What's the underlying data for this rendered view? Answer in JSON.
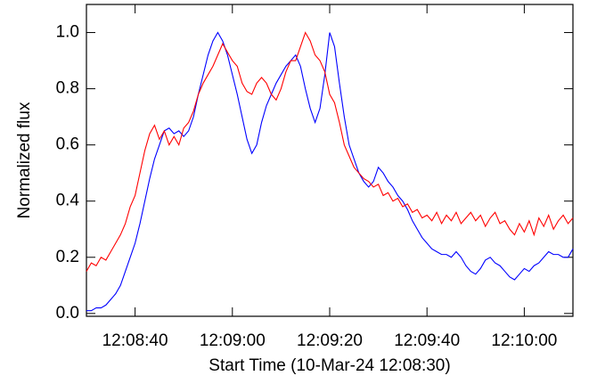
{
  "chart_data": {
    "type": "line",
    "xlabel": "Start Time (10-Mar-24 12:08:30)",
    "ylabel": "Normalized flux",
    "x": [
      0,
      1,
      2,
      3,
      4,
      5,
      6,
      7,
      8,
      9,
      10,
      11,
      12,
      13,
      14,
      15,
      16,
      17,
      18,
      19,
      20,
      21,
      22,
      23,
      24,
      25,
      26,
      27,
      28,
      29,
      30,
      31,
      32,
      33,
      34,
      35,
      36,
      37,
      38,
      39,
      40,
      41,
      42,
      43,
      44,
      45,
      46,
      47,
      48,
      49,
      50,
      51,
      52,
      53,
      54,
      55,
      56,
      57,
      58,
      59,
      60,
      61,
      62,
      63,
      64,
      65,
      66,
      67,
      68,
      69,
      70,
      71,
      72,
      73,
      74,
      75,
      76,
      77,
      78,
      79,
      80,
      81,
      82,
      83,
      84,
      85,
      86,
      87,
      88,
      89,
      90,
      91,
      92,
      93,
      94,
      95,
      96,
      97,
      98,
      99,
      100
    ],
    "series": [
      {
        "color": "#0000ff",
        "values": [
          0.01,
          0.01,
          0.02,
          0.02,
          0.03,
          0.05,
          0.07,
          0.1,
          0.15,
          0.2,
          0.25,
          0.32,
          0.4,
          0.48,
          0.55,
          0.6,
          0.65,
          0.66,
          0.64,
          0.65,
          0.63,
          0.65,
          0.7,
          0.78,
          0.85,
          0.92,
          0.97,
          1.0,
          0.97,
          0.92,
          0.85,
          0.78,
          0.7,
          0.62,
          0.57,
          0.6,
          0.68,
          0.74,
          0.78,
          0.82,
          0.85,
          0.88,
          0.9,
          0.92,
          0.88,
          0.8,
          0.73,
          0.68,
          0.73,
          0.85,
          1.0,
          0.95,
          0.82,
          0.7,
          0.6,
          0.55,
          0.5,
          0.47,
          0.45,
          0.47,
          0.52,
          0.5,
          0.47,
          0.45,
          0.42,
          0.4,
          0.37,
          0.33,
          0.3,
          0.27,
          0.25,
          0.23,
          0.22,
          0.21,
          0.21,
          0.2,
          0.22,
          0.2,
          0.17,
          0.15,
          0.14,
          0.16,
          0.19,
          0.2,
          0.18,
          0.17,
          0.15,
          0.13,
          0.12,
          0.14,
          0.16,
          0.15,
          0.17,
          0.18,
          0.2,
          0.22,
          0.21,
          0.21,
          0.2,
          0.2,
          0.23
        ]
      },
      {
        "color": "#ff0000",
        "values": [
          0.15,
          0.18,
          0.17,
          0.2,
          0.19,
          0.22,
          0.25,
          0.28,
          0.32,
          0.38,
          0.42,
          0.5,
          0.58,
          0.64,
          0.67,
          0.62,
          0.65,
          0.6,
          0.63,
          0.6,
          0.66,
          0.68,
          0.72,
          0.78,
          0.82,
          0.85,
          0.88,
          0.92,
          0.96,
          0.93,
          0.9,
          0.88,
          0.82,
          0.79,
          0.78,
          0.82,
          0.84,
          0.82,
          0.78,
          0.76,
          0.8,
          0.86,
          0.9,
          0.9,
          0.95,
          1.0,
          0.97,
          0.92,
          0.9,
          0.86,
          0.78,
          0.75,
          0.68,
          0.6,
          0.56,
          0.52,
          0.5,
          0.48,
          0.47,
          0.45,
          0.46,
          0.42,
          0.43,
          0.4,
          0.41,
          0.38,
          0.39,
          0.36,
          0.37,
          0.34,
          0.35,
          0.33,
          0.36,
          0.32,
          0.35,
          0.33,
          0.36,
          0.32,
          0.34,
          0.36,
          0.33,
          0.35,
          0.31,
          0.34,
          0.36,
          0.32,
          0.33,
          0.3,
          0.28,
          0.32,
          0.29,
          0.33,
          0.28,
          0.34,
          0.31,
          0.35,
          0.3,
          0.33,
          0.35,
          0.32,
          0.34
        ]
      }
    ],
    "xlim": [
      0,
      100
    ],
    "ylim": [
      -0.01,
      1.1
    ],
    "xticks": [
      {
        "value": 10,
        "label": "12:08:40"
      },
      {
        "value": 30,
        "label": "12:09:00"
      },
      {
        "value": 50,
        "label": "12:09:20"
      },
      {
        "value": 70,
        "label": "12:09:40"
      },
      {
        "value": 90,
        "label": "12:10:00"
      }
    ],
    "yticks": [
      {
        "value": 0,
        "label": "0.0"
      },
      0.2,
      0.4,
      0.6,
      0.8,
      {
        "value": 1,
        "label": "1.0"
      }
    ],
    "grid": false
  }
}
